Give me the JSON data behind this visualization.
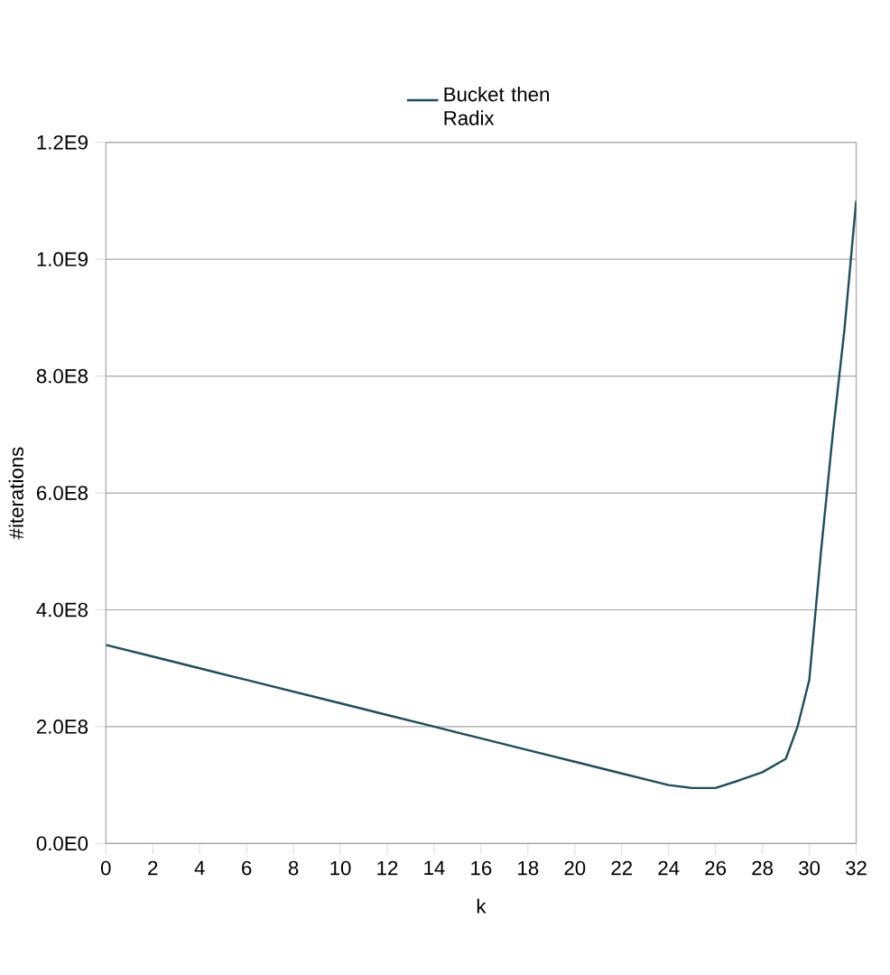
{
  "chart_data": {
    "type": "line",
    "xlabel": "k",
    "ylabel": "#iterations",
    "legend": "top",
    "grid": "y",
    "marker": "none",
    "line_style": "solid",
    "xlim": [
      0,
      32
    ],
    "xticks": [
      0,
      2,
      4,
      6,
      8,
      10,
      12,
      14,
      16,
      18,
      20,
      22,
      24,
      26,
      28,
      30,
      32
    ],
    "ylim": [
      0,
      1200000000
    ],
    "yticks": [
      {
        "value": 0,
        "label": "0.0E0"
      },
      {
        "value": 200000000,
        "label": "2.0E8"
      },
      {
        "value": 400000000,
        "label": "4.0E8"
      },
      {
        "value": 600000000,
        "label": "6.0E8"
      },
      {
        "value": 800000000,
        "label": "8.0E8"
      },
      {
        "value": 1000000000,
        "label": "1.0E9"
      },
      {
        "value": 1200000000,
        "label": "1.2E9"
      }
    ],
    "series": [
      {
        "name": "Bucket then Radix",
        "color": "#1f4e5a",
        "x": [
          0,
          2,
          4,
          6,
          8,
          10,
          12,
          14,
          16,
          18,
          20,
          22,
          24,
          25,
          26,
          27,
          28,
          29,
          29.5,
          30,
          30.5,
          31,
          31.5,
          32
        ],
        "values": [
          340000000,
          320000000,
          300000000,
          280000000,
          260000000,
          240000000,
          220000000,
          200000000,
          180000000,
          160000000,
          140000000,
          120000000,
          100000000,
          95000000,
          95000000,
          108000000,
          122000000,
          145000000,
          200000000,
          280000000,
          500000000,
          700000000,
          880000000,
          1100000000
        ]
      }
    ]
  }
}
